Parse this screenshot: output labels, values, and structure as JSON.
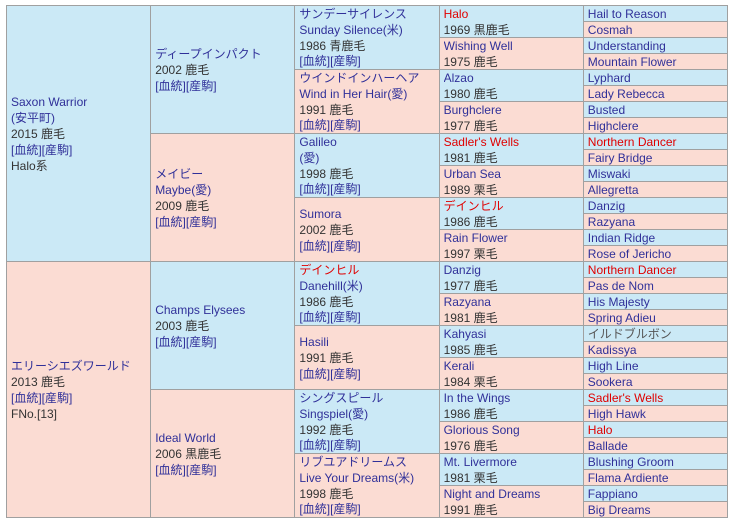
{
  "colors": {
    "male_bg": "#cbe9f6",
    "female_bg": "#fbdcd3",
    "border": "#a0a0a0",
    "link_text": "#303099",
    "highlight_red": "#e00000",
    "plain_text": "#333333",
    "gray_text": "#555555"
  },
  "links_label": {
    "bloodline": "[血統]",
    "offspring": "[産駒]"
  },
  "generations": [
    [
      {
        "sex": "m",
        "name": "Saxon Warrior",
        "sub": "(安平町)",
        "info": "2015 鹿毛",
        "links": true,
        "extra": "Halo系"
      },
      {
        "sex": "f",
        "name": "エリーシエズワールド",
        "info": "2013 鹿毛",
        "links": true,
        "extra": "FNo.[13]"
      }
    ],
    [
      {
        "sex": "m",
        "name": "ディープインパクト",
        "info": "2002 鹿毛",
        "links": true
      },
      {
        "sex": "f",
        "name": "メイビー",
        "sub": "Maybe(愛)",
        "info": "2009 鹿毛",
        "links": true
      },
      {
        "sex": "m",
        "name": "Champs Elysees",
        "info": "2003 鹿毛",
        "links": true
      },
      {
        "sex": "f",
        "name": "Ideal World",
        "info": "2006 黒鹿毛",
        "links": true
      }
    ],
    [
      {
        "sex": "m",
        "name": "サンデーサイレンス",
        "sub": "Sunday Silence(米)",
        "info": "1986 青鹿毛",
        "links": true
      },
      {
        "sex": "f",
        "name": "ウインドインハーヘア",
        "sub": "Wind in Her Hair(愛)",
        "info": "1991 鹿毛",
        "links": true
      },
      {
        "sex": "m",
        "name": "Galileo",
        "sub": "(愛)",
        "info": "1998 鹿毛",
        "links": true
      },
      {
        "sex": "f",
        "name": "Sumora",
        "info": "2002 鹿毛",
        "links": true
      },
      {
        "sex": "m",
        "name": "デインヒル",
        "name_style": "red",
        "sub": "Danehill(米)",
        "info": "1986 鹿毛",
        "links": true
      },
      {
        "sex": "f",
        "name": "Hasili",
        "info": "1991 鹿毛",
        "links": true
      },
      {
        "sex": "m",
        "name": "シングスピール",
        "sub": "Singspiel(愛)",
        "info": "1992 鹿毛",
        "links": true
      },
      {
        "sex": "f",
        "name": "リブユアドリームス",
        "sub": "Live Your Dreams(米)",
        "info": "1998 鹿毛",
        "links": true
      }
    ],
    [
      {
        "sex": "m",
        "name": "Halo",
        "name_style": "red",
        "info": "1969 黒鹿毛"
      },
      {
        "sex": "f",
        "name": "Wishing Well",
        "info": "1975 鹿毛"
      },
      {
        "sex": "m",
        "name": "Alzao",
        "info": "1980 鹿毛"
      },
      {
        "sex": "f",
        "name": "Burghclere",
        "info": "1977 鹿毛"
      },
      {
        "sex": "m",
        "name": "Sadler's Wells",
        "name_style": "red",
        "info": "1981 鹿毛"
      },
      {
        "sex": "f",
        "name": "Urban Sea",
        "info": "1989 栗毛"
      },
      {
        "sex": "m",
        "name": "デインヒル",
        "name_style": "red",
        "info": "1986 鹿毛"
      },
      {
        "sex": "f",
        "name": "Rain Flower",
        "info": "1997 栗毛"
      },
      {
        "sex": "m",
        "name": "Danzig",
        "info": "1977 鹿毛"
      },
      {
        "sex": "f",
        "name": "Razyana",
        "info": "1981 鹿毛"
      },
      {
        "sex": "m",
        "name": "Kahyasi",
        "info": "1985 鹿毛"
      },
      {
        "sex": "f",
        "name": "Kerali",
        "info": "1984 栗毛"
      },
      {
        "sex": "m",
        "name": "In the Wings",
        "info": "1986 鹿毛"
      },
      {
        "sex": "f",
        "name": "Glorious Song",
        "info": "1976 鹿毛"
      },
      {
        "sex": "m",
        "name": "Mt. Livermore",
        "info": "1981 栗毛"
      },
      {
        "sex": "f",
        "name": "Night and Dreams",
        "info": "1991 鹿毛"
      }
    ],
    [
      {
        "sex": "m",
        "name": "Hail to Reason"
      },
      {
        "sex": "f",
        "name": "Cosmah"
      },
      {
        "sex": "m",
        "name": "Understanding"
      },
      {
        "sex": "f",
        "name": "Mountain Flower"
      },
      {
        "sex": "m",
        "name": "Lyphard"
      },
      {
        "sex": "f",
        "name": "Lady Rebecca"
      },
      {
        "sex": "m",
        "name": "Busted"
      },
      {
        "sex": "f",
        "name": "Highclere"
      },
      {
        "sex": "m",
        "name": "Northern Dancer",
        "name_style": "red"
      },
      {
        "sex": "f",
        "name": "Fairy Bridge"
      },
      {
        "sex": "m",
        "name": "Miswaki"
      },
      {
        "sex": "f",
        "name": "Allegretta"
      },
      {
        "sex": "m",
        "name": "Danzig"
      },
      {
        "sex": "f",
        "name": "Razyana"
      },
      {
        "sex": "m",
        "name": "Indian Ridge"
      },
      {
        "sex": "f",
        "name": "Rose of Jericho"
      },
      {
        "sex": "m",
        "name": "Northern Dancer",
        "name_style": "red"
      },
      {
        "sex": "f",
        "name": "Pas de Nom"
      },
      {
        "sex": "m",
        "name": "His Majesty"
      },
      {
        "sex": "f",
        "name": "Spring Adieu"
      },
      {
        "sex": "m",
        "name": "イルドブルボン",
        "name_style": "gray"
      },
      {
        "sex": "f",
        "name": "Kadissya"
      },
      {
        "sex": "m",
        "name": "High Line"
      },
      {
        "sex": "f",
        "name": "Sookera"
      },
      {
        "sex": "m",
        "name": "Sadler's Wells",
        "name_style": "red"
      },
      {
        "sex": "f",
        "name": "High Hawk"
      },
      {
        "sex": "m",
        "name": "Halo",
        "name_style": "red"
      },
      {
        "sex": "f",
        "name": "Ballade"
      },
      {
        "sex": "m",
        "name": "Blushing Groom"
      },
      {
        "sex": "f",
        "name": "Flama Ardiente"
      },
      {
        "sex": "m",
        "name": "Fappiano"
      },
      {
        "sex": "f",
        "name": "Big Dreams"
      }
    ]
  ]
}
